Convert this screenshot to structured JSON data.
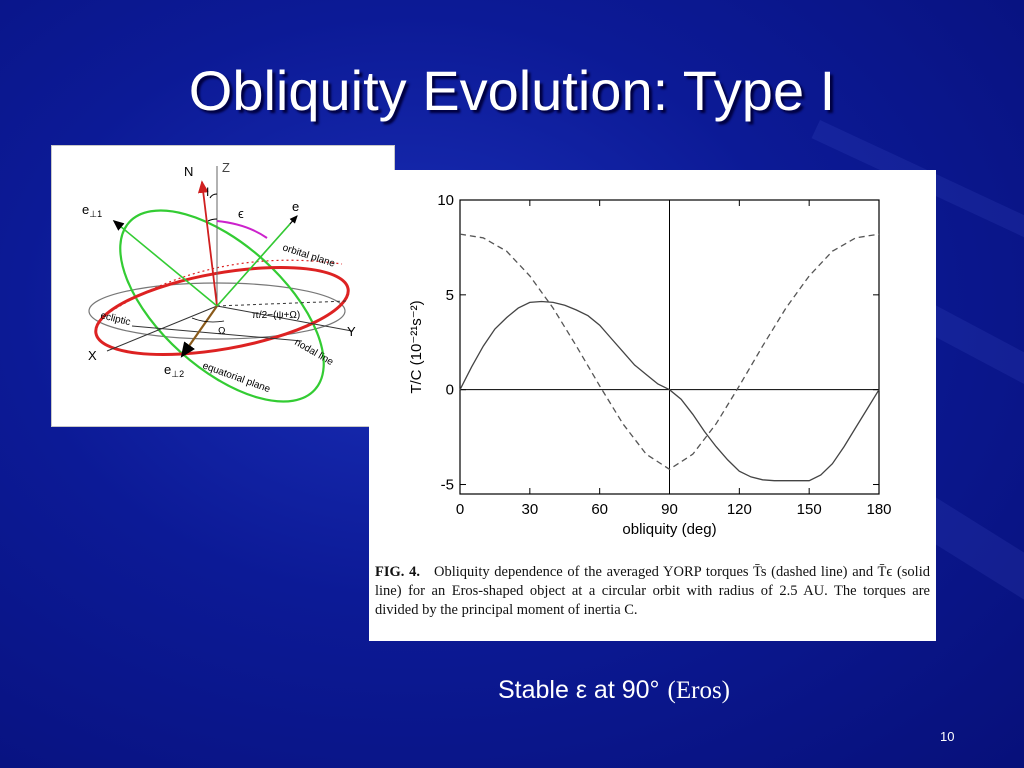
{
  "slide": {
    "title": "Obliquity Evolution: Type I",
    "page_number": "10",
    "footnote_main": "Stable ε at 90°",
    "footnote_paren": "(Eros)",
    "colors": {
      "background": "#0c1a96",
      "orbital_plane": "#e03030",
      "equatorial_plane": "#22cc22",
      "ecliptic": "#888888"
    }
  },
  "diagram": {
    "labels": {
      "N": "N",
      "Z": "Z",
      "I": "I",
      "epsilon": "ϵ",
      "e": "e",
      "e_perp1": "e",
      "e_perp1_sub": "⊥1",
      "e_perp2": "e",
      "e_perp2_sub": "⊥2",
      "X": "X",
      "Y": "Y",
      "orbital_plane": "orbital plane",
      "ecliptic": "ecliptic",
      "nodal_line": "nodal line",
      "equatorial_plane": "equatorial plane",
      "omega": "Ω",
      "angle_formula": "π/2−(ψ+Ω)"
    }
  },
  "chart": {
    "ylabel": "T/C  (10⁻²¹s⁻²)",
    "xlabel": "obliquity (deg)",
    "caption_fig": "FIG. 4.",
    "caption_text": "Obliquity dependence of the averaged YORP torques T̄s (dashed line) and T̄ϵ (solid line) for an Eros-shaped object at a circular orbit with radius of 2.5 AU. The torques are divided by the principal moment of inertia C."
  },
  "chart_data": {
    "type": "line",
    "xlabel": "obliquity (deg)",
    "ylabel": "T/C  (10⁻²¹s⁻²)",
    "xlim": [
      0,
      180
    ],
    "ylim": [
      -5.5,
      10
    ],
    "xticks": [
      0,
      30,
      60,
      90,
      120,
      150,
      180
    ],
    "yticks": [
      -5,
      0,
      5,
      10
    ],
    "vertical_line_x": 90,
    "series": [
      {
        "style": "dashed",
        "x": [
          0,
          10,
          20,
          30,
          40,
          50,
          60,
          70,
          80,
          90,
          100,
          110,
          120,
          130,
          140,
          150,
          160,
          170,
          180
        ],
        "y": [
          8.2,
          8.0,
          7.3,
          6.0,
          4.3,
          2.3,
          0.2,
          -1.8,
          -3.4,
          -4.2,
          -3.4,
          -1.8,
          0.2,
          2.3,
          4.3,
          6.0,
          7.3,
          8.0,
          8.2
        ]
      },
      {
        "style": "solid",
        "x": [
          0,
          5,
          10,
          15,
          20,
          25,
          30,
          35,
          40,
          45,
          50,
          55,
          60,
          65,
          70,
          75,
          80,
          85,
          90,
          95,
          100,
          105,
          110,
          115,
          120,
          125,
          130,
          135,
          140,
          145,
          150,
          155,
          160,
          165,
          170,
          175,
          180
        ],
        "y": [
          0,
          1.2,
          2.3,
          3.2,
          3.8,
          4.3,
          4.6,
          4.65,
          4.6,
          4.45,
          4.2,
          3.9,
          3.4,
          2.7,
          2.0,
          1.3,
          0.8,
          0.3,
          0,
          -0.5,
          -1.3,
          -2.2,
          -3.0,
          -3.7,
          -4.3,
          -4.6,
          -4.75,
          -4.8,
          -4.8,
          -4.8,
          -4.8,
          -4.5,
          -3.9,
          -3.0,
          -2.0,
          -1.0,
          0
        ]
      }
    ]
  }
}
